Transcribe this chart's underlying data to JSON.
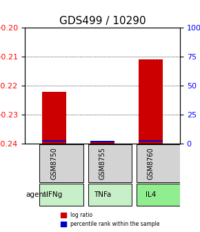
{
  "title": "GDS499 / 10290",
  "samples": [
    "GSM8750",
    "GSM8755",
    "GSM8760"
  ],
  "agents": [
    "IFNg",
    "TNFa",
    "IL4"
  ],
  "log_ratios": [
    -0.222,
    -0.239,
    -0.211
  ],
  "percentile_ranks": [
    2,
    1,
    2
  ],
  "ylim_left": [
    -0.24,
    -0.2
  ],
  "ylim_right": [
    0,
    100
  ],
  "yticks_left": [
    -0.24,
    -0.23,
    -0.22,
    -0.21,
    -0.2
  ],
  "yticks_right": [
    0,
    25,
    50,
    75,
    100
  ],
  "bar_color_red": "#cc0000",
  "bar_color_blue": "#0000cc",
  "bar_width": 0.5,
  "agent_colors": [
    "#c8f0c8",
    "#c8f0c8",
    "#90ee90"
  ],
  "sample_box_color": "#d3d3d3",
  "background_color": "#ffffff",
  "title_fontsize": 11,
  "tick_fontsize": 8,
  "label_fontsize": 7.5
}
